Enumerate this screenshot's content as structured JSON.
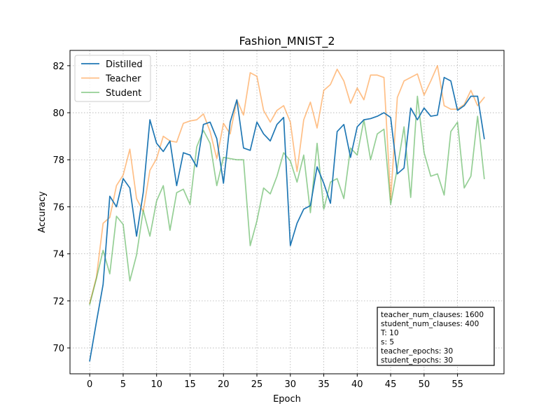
{
  "chart_data": {
    "type": "line",
    "title": "Fashion_MNIST_2",
    "xlabel": "Epoch",
    "ylabel": "Accuracy",
    "xlim": [
      -2.95,
      61.95
    ],
    "ylim": [
      68.9,
      82.65
    ],
    "xticks": [
      0,
      5,
      10,
      15,
      20,
      25,
      30,
      35,
      40,
      45,
      50,
      55
    ],
    "yticks": [
      70,
      72,
      74,
      76,
      78,
      80,
      82
    ],
    "grid": true,
    "legend_position": "top-left",
    "x": [
      0,
      1,
      2,
      3,
      4,
      5,
      6,
      7,
      8,
      9,
      10,
      11,
      12,
      13,
      14,
      15,
      16,
      17,
      18,
      19,
      20,
      21,
      22,
      23,
      24,
      25,
      26,
      27,
      28,
      29,
      30,
      31,
      32,
      33,
      34,
      35,
      36,
      37,
      38,
      39,
      40,
      41,
      42,
      43,
      44,
      45,
      46,
      47,
      48,
      49,
      50,
      51,
      52,
      53,
      54,
      55,
      56,
      57,
      58,
      59
    ],
    "series": [
      {
        "name": "Distilled",
        "color": "#1f77b4",
        "opacity": 1.0,
        "values": [
          69.45,
          71.1,
          72.7,
          76.45,
          76.0,
          77.2,
          76.8,
          74.75,
          76.6,
          79.7,
          78.7,
          78.35,
          78.8,
          76.9,
          78.3,
          78.2,
          77.7,
          79.5,
          79.6,
          78.9,
          77.0,
          79.6,
          80.55,
          78.5,
          78.4,
          79.6,
          79.1,
          78.8,
          79.5,
          79.8,
          74.35,
          75.3,
          75.9,
          76.05,
          77.7,
          77.0,
          76.15,
          79.2,
          79.5,
          78.1,
          79.4,
          79.7,
          79.75,
          79.85,
          80.0,
          79.8,
          77.4,
          77.65,
          80.2,
          79.7,
          80.2,
          79.85,
          79.9,
          81.5,
          81.35,
          80.1,
          80.3,
          80.7,
          80.7,
          78.9
        ]
      },
      {
        "name": "Teacher",
        "color": "#ff7f0e",
        "opacity": 0.5,
        "values": [
          71.9,
          73.0,
          75.3,
          75.55,
          76.9,
          77.35,
          78.45,
          76.35,
          75.8,
          77.55,
          78.05,
          79.0,
          78.8,
          78.75,
          79.55,
          79.65,
          79.7,
          79.95,
          79.2,
          78.05,
          79.55,
          79.1,
          80.55,
          79.9,
          81.7,
          81.55,
          80.1,
          79.6,
          80.1,
          80.3,
          79.6,
          77.5,
          79.7,
          80.45,
          79.35,
          80.95,
          81.2,
          81.85,
          81.35,
          80.4,
          81.05,
          80.55,
          81.6,
          81.6,
          81.5,
          76.3,
          80.65,
          81.35,
          81.5,
          81.65,
          80.75,
          81.35,
          82.0,
          80.3,
          80.15,
          80.15,
          80.35,
          80.95,
          80.3,
          80.65
        ]
      },
      {
        "name": "Student",
        "color": "#2ca02c",
        "opacity": 0.5,
        "values": [
          71.85,
          72.95,
          74.15,
          73.15,
          75.6,
          75.25,
          72.85,
          73.95,
          75.85,
          74.75,
          76.25,
          76.9,
          75.0,
          76.6,
          76.75,
          76.1,
          78.55,
          79.25,
          78.7,
          76.9,
          78.1,
          78.05,
          78.0,
          78.0,
          74.35,
          75.4,
          76.8,
          76.55,
          77.3,
          78.3,
          77.95,
          77.05,
          78.2,
          75.75,
          78.7,
          75.9,
          77.05,
          77.2,
          76.35,
          78.5,
          78.2,
          79.7,
          78.0,
          79.1,
          79.3,
          76.1,
          77.65,
          79.4,
          76.4,
          80.7,
          78.3,
          77.3,
          77.4,
          76.5,
          79.2,
          79.6,
          76.8,
          77.3,
          79.85,
          77.2
        ]
      }
    ],
    "info_box": [
      "teacher_num_clauses: 1600",
      "student_num_clauses: 400",
      "T: 10",
      "s: 5",
      "teacher_epochs: 30",
      "student_epochs: 30"
    ]
  }
}
